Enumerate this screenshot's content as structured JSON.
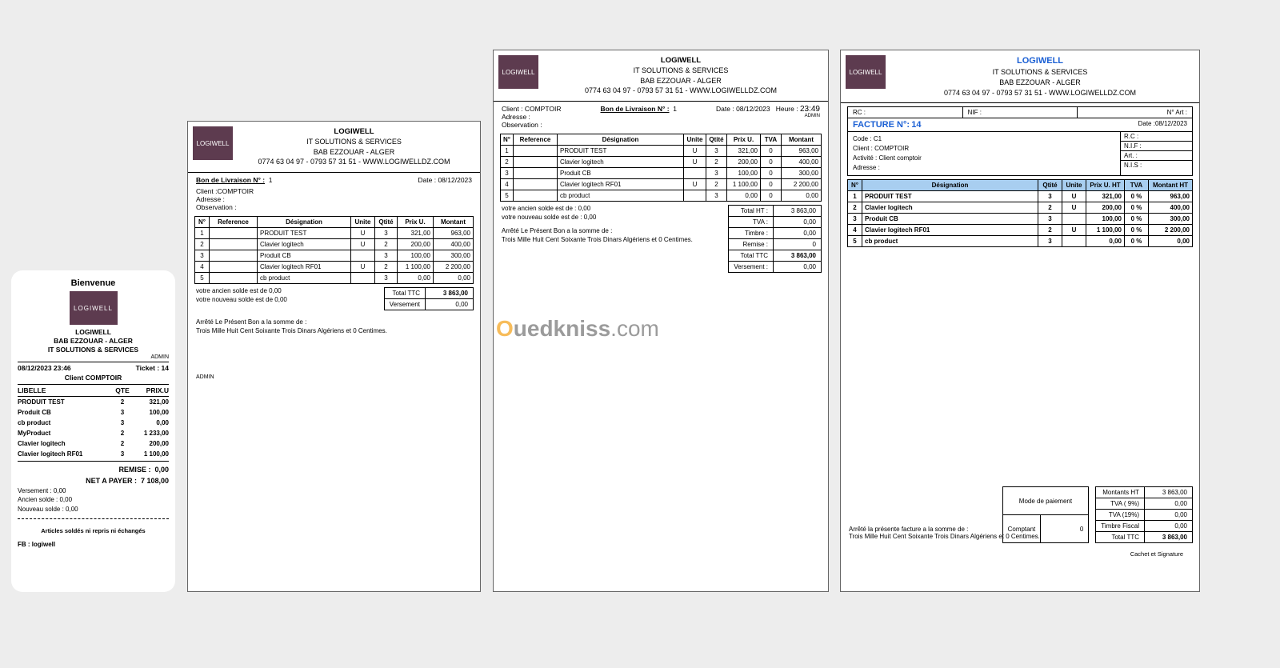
{
  "company": {
    "name": "LOGIWELL",
    "tagline": "IT SOLUTIONS & SERVICES",
    "address": "BAB EZZOUAR - ALGER",
    "contact": "0774 63 04 97 - 0793 57 31 51 - WWW.LOGIWELLDZ.COM"
  },
  "colors": {
    "logo_bg": "#5d3b4f",
    "facture_accent": "#1a5fd4",
    "facture_header_bg": "#a8cef0",
    "page_bg": "#ededed",
    "paper_bg": "#ffffff"
  },
  "receipt": {
    "welcome": "Bienvenue",
    "admin": "ADMIN",
    "datetime": "08/12/2023 23:46",
    "ticket_label": "Ticket : 14",
    "client_label": "Client COMPTOIR",
    "headers": {
      "libelle": "LIBELLE",
      "qte": "QTE",
      "prix": "PRIX.U"
    },
    "items": [
      {
        "lib": "PRODUIT TEST",
        "qte": "2",
        "prix": "321,00"
      },
      {
        "lib": "Produit CB",
        "qte": "3",
        "prix": "100,00"
      },
      {
        "lib": "cb product",
        "qte": "3",
        "prix": "0,00"
      },
      {
        "lib": "MyProduct",
        "qte": "2",
        "prix": "1 233,00"
      },
      {
        "lib": "Clavier logitech",
        "qte": "2",
        "prix": "200,00"
      },
      {
        "lib": "Clavier logitech RF01",
        "qte": "3",
        "prix": "1 100,00"
      }
    ],
    "remise_label": "REMISE :",
    "remise": "0,00",
    "net_label": "NET A PAYER :",
    "net": "7 108,00",
    "versement": "Versement :  0,00",
    "ancien": "Ancien solde :  0,00",
    "nouveau": "Nouveau solde :  0,00",
    "footer": "Articles soldés ni repris ni échangés",
    "fb": "FB : logiwell"
  },
  "bl_small": {
    "title": "Bon de Livraison N° :",
    "num": "1",
    "date_label": "Date :",
    "date": "08/12/2023",
    "client_label": "Client :",
    "client": "COMPTOIR",
    "adresse_label": "Adresse :",
    "obs_label": "Observation :",
    "headers": {
      "n": "N°",
      "ref": "Reference",
      "des": "Désignation",
      "unite": "Unite",
      "qte": "Qtité",
      "prix": "Prix U.",
      "mnt": "Montant"
    },
    "rows": [
      {
        "n": "1",
        "des": "PRODUIT TEST",
        "u": "U",
        "q": "3",
        "p": "321,00",
        "m": "963,00"
      },
      {
        "n": "2",
        "des": "Clavier logitech",
        "u": "U",
        "q": "2",
        "p": "200,00",
        "m": "400,00"
      },
      {
        "n": "3",
        "des": "Produit CB",
        "u": "",
        "q": "3",
        "p": "100,00",
        "m": "300,00"
      },
      {
        "n": "4",
        "des": "Clavier logitech RF01",
        "u": "U",
        "q": "2",
        "p": "1 100,00",
        "m": "2 200,00"
      },
      {
        "n": "5",
        "des": "cb product",
        "u": "",
        "q": "3",
        "p": "0,00",
        "m": "0,00"
      }
    ],
    "ancien": "votre ancien solde est de  0,00",
    "nouveau": "votre nouveau solde est de  0,00",
    "total_label": "Total TTC",
    "total": "3 863,00",
    "vers_label": "Versement",
    "vers": "0,00",
    "arrete": "Arrêté Le Présent Bon a la somme de :",
    "words": "Trois Mille Huit Cent Soixante Trois Dinars Algériens et 0 Centimes.",
    "admin": "ADMIN"
  },
  "bl_big": {
    "title": "Bon de Livraison N° :",
    "num": "1",
    "date_label": "Date :",
    "date": "08/12/2023",
    "heure_label": "Heure :",
    "heure": "23:49",
    "admin": "ADMIN",
    "client_label": "Client :",
    "client": "COMPTOIR",
    "adresse_label": "Adresse :",
    "obs_label": "Observation :",
    "headers": {
      "n": "N°",
      "ref": "Reference",
      "des": "Désignation",
      "unite": "Unite",
      "qte": "Qtité",
      "prix": "Prix U.",
      "tva": "TVA",
      "mnt": "Montant"
    },
    "rows": [
      {
        "n": "1",
        "des": "PRODUIT TEST",
        "u": "U",
        "q": "3",
        "p": "321,00",
        "t": "0",
        "m": "963,00"
      },
      {
        "n": "2",
        "des": "Clavier logitech",
        "u": "U",
        "q": "2",
        "p": "200,00",
        "t": "0",
        "m": "400,00"
      },
      {
        "n": "3",
        "des": "Produit CB",
        "u": "",
        "q": "3",
        "p": "100,00",
        "t": "0",
        "m": "300,00"
      },
      {
        "n": "4",
        "des": "Clavier logitech RF01",
        "u": "U",
        "q": "2",
        "p": "1 100,00",
        "t": "0",
        "m": "2 200,00"
      },
      {
        "n": "5",
        "des": "cb product",
        "u": "",
        "q": "3",
        "p": "0,00",
        "t": "0",
        "m": "0,00"
      }
    ],
    "ancien": "votre ancien solde est de : 0,00",
    "nouveau": "votre nouveau solde est de : 0,00",
    "totals": [
      {
        "l": "Total HT :",
        "v": "3 863,00"
      },
      {
        "l": "TVA :",
        "v": "0,00"
      },
      {
        "l": "Timbre :",
        "v": "0,00"
      },
      {
        "l": "Remise :",
        "v": "0"
      },
      {
        "l": "Total TTC",
        "v": "3 863,00",
        "bold": true
      },
      {
        "l": "Versement :",
        "v": "0,00"
      }
    ],
    "arrete": "Arrêté Le Présent Bon a la somme de :",
    "words": "Trois Mille Huit Cent Soixante Trois Dinars Algériens et 0 Centimes."
  },
  "facture": {
    "rc_label": "RC :",
    "nif_label": "NIF :",
    "art_label": "N° Art :",
    "title_label": "FACTURE N°:",
    "num": "14",
    "date_label": "Date :",
    "date": "08/12/2023",
    "code_label": "Code :",
    "code": "C1",
    "client_label": "Client :",
    "client": "COMPTOIR",
    "act_label": "Activité :",
    "act": "Client comptoir",
    "adresse_label": "Adresse :",
    "side_labels": [
      "R.C :",
      "N.I.F :",
      "Art. :",
      "N.I.S :"
    ],
    "headers": {
      "n": "N°",
      "des": "Désignation",
      "qte": "Qtité",
      "unite": "Unite",
      "prix": "Prix U. HT",
      "tva": "TVA",
      "mnt": "Montant HT"
    },
    "rows": [
      {
        "n": "1",
        "des": "PRODUIT TEST",
        "q": "3",
        "u": "U",
        "p": "321,00",
        "t": "0 %",
        "m": "963,00"
      },
      {
        "n": "2",
        "des": "Clavier logitech",
        "q": "2",
        "u": "U",
        "p": "200,00",
        "t": "0 %",
        "m": "400,00"
      },
      {
        "n": "3",
        "des": "Produit CB",
        "q": "3",
        "u": "",
        "p": "100,00",
        "t": "0 %",
        "m": "300,00"
      },
      {
        "n": "4",
        "des": "Clavier logitech RF01",
        "q": "2",
        "u": "U",
        "p": "1 100,00",
        "t": "0 %",
        "m": "2 200,00"
      },
      {
        "n": "5",
        "des": "cb product",
        "q": "3",
        "u": "",
        "p": "0,00",
        "t": "0 %",
        "m": "0,00"
      }
    ],
    "pay_title": "Mode de paiement",
    "pay_method": "Comptant",
    "pay_val": "0",
    "totals": [
      {
        "l": "Montants HT",
        "v": "3 863,00"
      },
      {
        "l": "TVA ( 9%)",
        "v": "0,00"
      },
      {
        "l": "TVA (19%)",
        "v": "0,00"
      },
      {
        "l": "Timbre Fiscal",
        "v": "0,00"
      },
      {
        "l": "Total TTC",
        "v": "3 863,00",
        "bold": true
      }
    ],
    "arrete": "Arrêté la présente facture a la somme de :",
    "words": "Trois Mille Huit Cent Soixante Trois Dinars Algériens et 0 Centimes.",
    "sign": "Cachet et Signature"
  },
  "watermark": {
    "o": "O",
    "rest": "uedkniss",
    ".com": ".com"
  }
}
